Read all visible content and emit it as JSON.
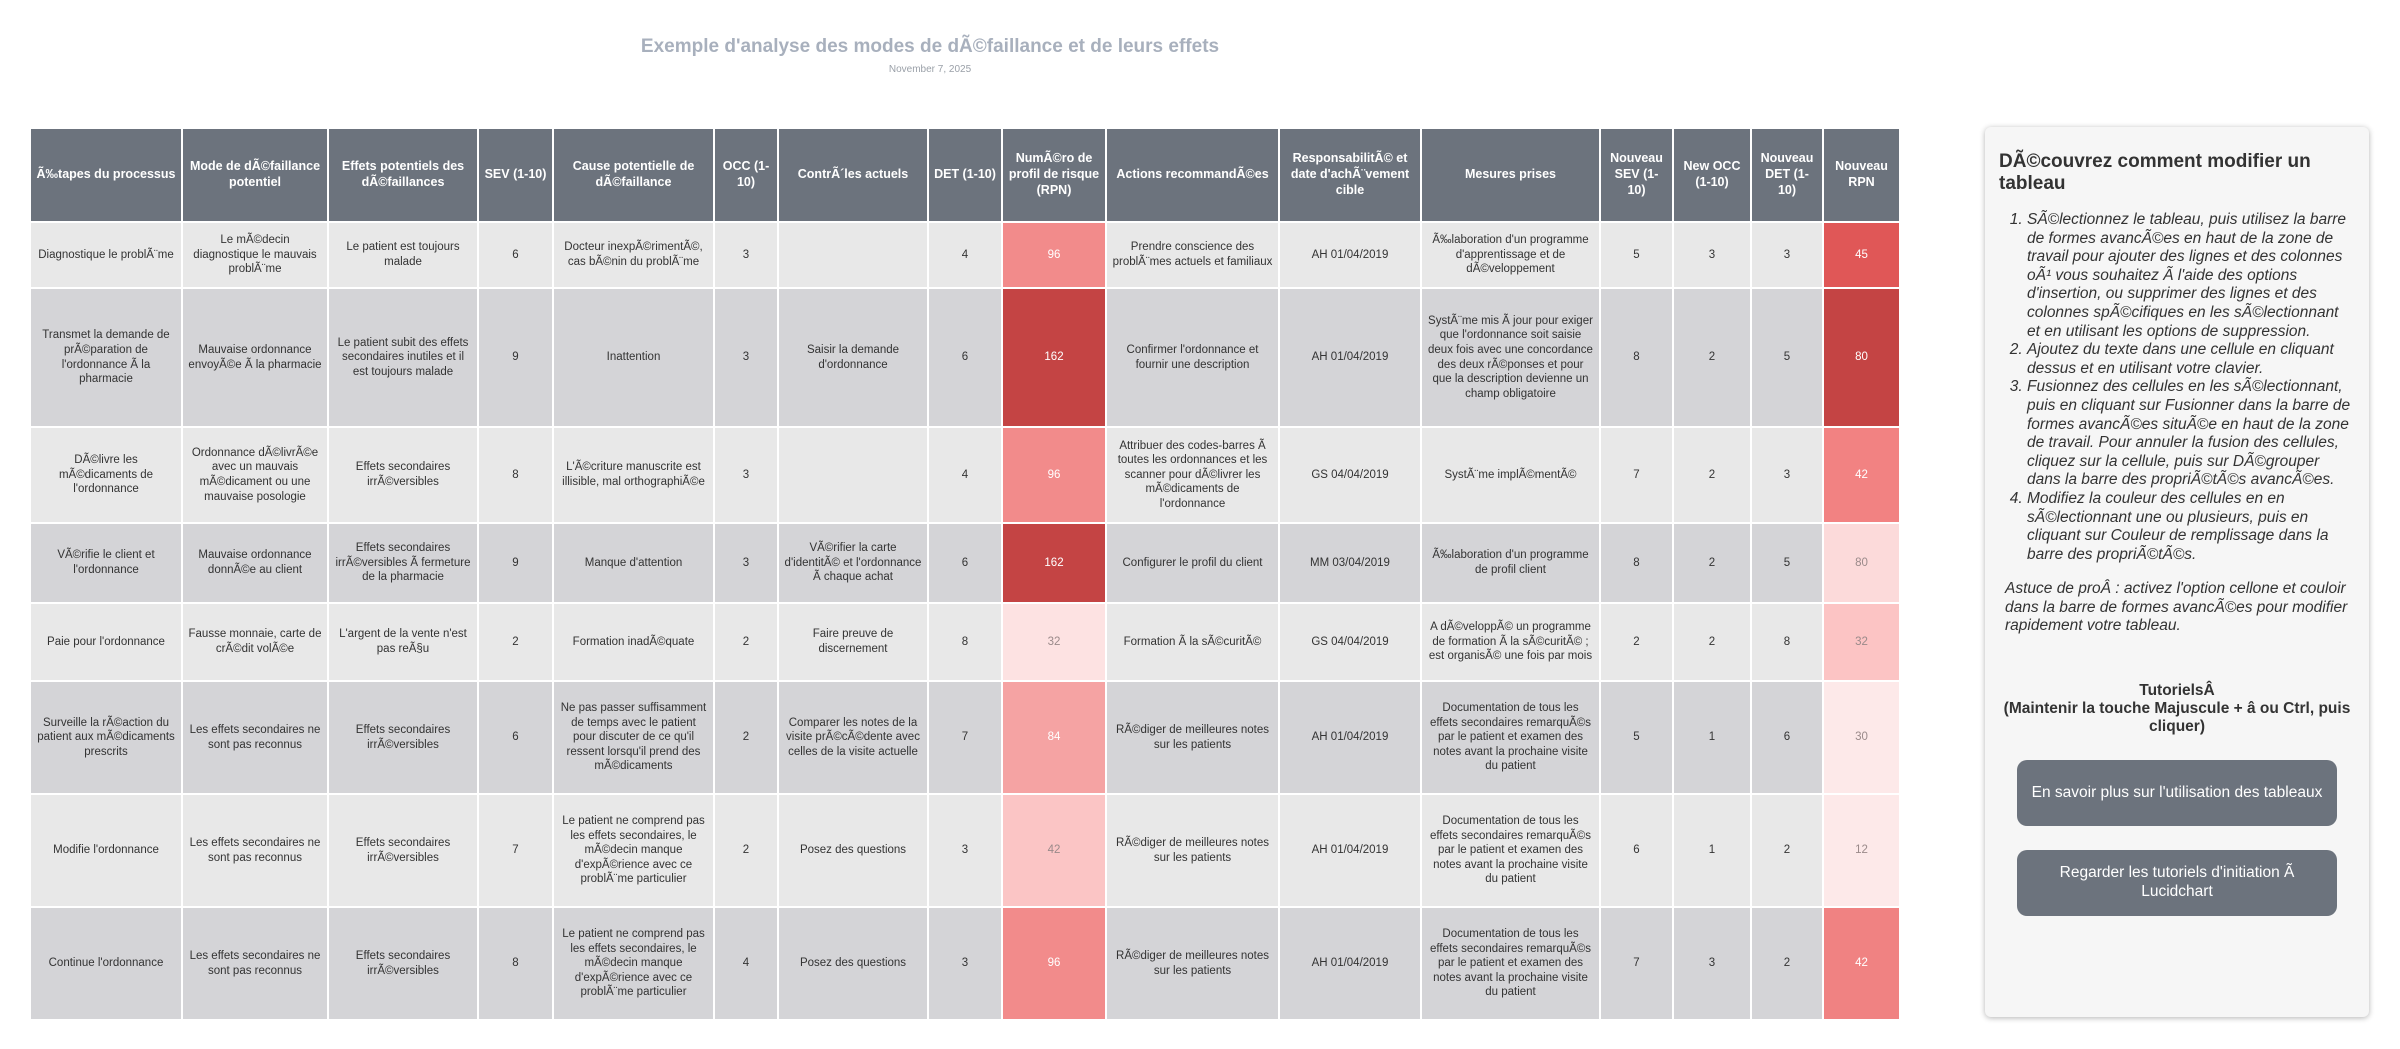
{
  "title": "Exemple d'analyse des modes de dÃ©faillance et de leurs effets",
  "date": "November 7, 2025",
  "table": {
    "headers": [
      "Ã‰tapes du processus",
      "Mode de dÃ©faillance potentiel",
      "Effets potentiels des dÃ©faillances",
      "SEV (1-10)",
      "Cause potentielle de dÃ©faillance",
      "OCC (1-10)",
      "ContrÃ´les actuels",
      "DET (1-10)",
      "NumÃ©ro de profil de risque (RPN)",
      "Actions recommandÃ©es",
      "ResponsabilitÃ© et date d'achÃ¨vement cible",
      "Mesures prises",
      "Nouveau SEV (1-10)",
      "New OCC (1-10)",
      "Nouveau DET (1-10)",
      "Nouveau RPN"
    ],
    "rows": [
      [
        "Diagnostique le problÃ¨me",
        "Le mÃ©decin diagnostique le mauvais problÃ¨me",
        "Le patient est toujours malade",
        6,
        "Docteur inexpÃ©rimentÃ©, cas bÃ©nin du problÃ¨me",
        3,
        null,
        4,
        96,
        "Prendre conscience des problÃ¨mes actuels et familiaux",
        "AH 01/04/2019",
        "Ã‰laboration d'un programme d'apprentissage et de dÃ©veloppement",
        5,
        3,
        3,
        45
      ],
      [
        "Transmet la demande de prÃ©paration de l'ordonnance Ã  la pharmacie",
        "Mauvaise ordonnance envoyÃ©e Ã  la pharmacie",
        "Le patient subit des effets secondaires inutiles et il est toujours malade",
        9,
        "Inattention",
        3,
        "Saisir la demande d'ordonnance",
        6,
        162,
        "Confirmer l'ordonnance et fournir une description",
        "AH 01/04/2019",
        "SystÃ¨me mis Ã  jour pour exiger que l'ordonnance soit saisie deux fois avec une concordance des deux rÃ©ponses et pour que la description devienne un champ obligatoire",
        8,
        2,
        5,
        80
      ],
      [
        "DÃ©livre les mÃ©dicaments de l'ordonnance",
        "Ordonnance dÃ©livrÃ©e avec un mauvais mÃ©dicament ou une mauvaise posologie",
        "Effets secondaires irrÃ©versibles",
        8,
        "L'Ã©criture manuscrite est illisible, mal orthographiÃ©e",
        3,
        null,
        4,
        96,
        "Attribuer des codes-barres Ã  toutes les ordonnances et les scanner pour dÃ©livrer les mÃ©dicaments de l'ordonnance",
        "GS 04/04/2019",
        "SystÃ¨me implÃ©mentÃ©",
        7,
        2,
        3,
        42
      ],
      [
        "VÃ©rifie le client et l'ordonnance",
        "Mauvaise ordonnance donnÃ©e au client",
        "Effets secondaires irrÃ©versibles Ã  fermeture de la pharmacie",
        9,
        "Manque d'attention",
        3,
        "VÃ©rifier la carte d'identitÃ© et l'ordonnance Ã  chaque achat",
        6,
        162,
        "Configurer le profil du client",
        "MM 03/04/2019",
        "Ã‰laboration d'un programme de profil client",
        8,
        2,
        5,
        80
      ],
      [
        "Paie pour l'ordonnance",
        "Fausse monnaie, carte de crÃ©dit volÃ©e",
        "L'argent de la vente n'est pas reÃ§u",
        2,
        "Formation inadÃ©quate",
        2,
        "Faire preuve de discernement",
        8,
        32,
        "Formation Ã  la sÃ©curitÃ©",
        "GS 04/04/2019",
        "A dÃ©veloppÃ© un programme de formation Ã  la sÃ©curitÃ© ; est organisÃ© une fois par mois",
        2,
        2,
        8,
        32
      ],
      [
        "Surveille la rÃ©action du patient aux mÃ©dicaments prescrits",
        "Les effets secondaires ne sont pas reconnus",
        "Effets secondaires irrÃ©versibles",
        6,
        "Ne pas passer suffisamment de temps avec le patient pour discuter de ce qu'il ressent lorsqu'il prend des mÃ©dicaments",
        2,
        "Comparer les notes de la visite prÃ©cÃ©dente avec celles de la visite actuelle",
        7,
        84,
        "RÃ©diger de meilleures notes sur les patients",
        "AH 01/04/2019",
        "Documentation de tous les effets secondaires remarquÃ©s par le patient et examen des notes avant la prochaine visite du patient",
        5,
        1,
        6,
        30
      ],
      [
        "Modifie l'ordonnance",
        "Les effets secondaires ne sont pas reconnus",
        "Effets secondaires irrÃ©versibles",
        7,
        "Le patient ne comprend pas les effets secondaires, le mÃ©decin manque d'expÃ©rience avec ce problÃ¨me particulier",
        2,
        "Posez des questions",
        3,
        42,
        "RÃ©diger de meilleures notes sur les patients",
        "AH 01/04/2019",
        "Documentation de tous les effets secondaires remarquÃ©s par le patient et examen des notes avant la prochaine visite du patient",
        6,
        1,
        2,
        12
      ],
      [
        "Continue l'ordonnance",
        "Les effets secondaires ne sont pas reconnus",
        "Effets secondaires irrÃ©versibles",
        8,
        "Le patient ne comprend pas les effets secondaires, le mÃ©decin manque d'expÃ©rience avec ce problÃ¨me particulier",
        4,
        "Posez des questions",
        3,
        96,
        "RÃ©diger de meilleures notes sur les patients",
        "AH 01/04/2019",
        "Documentation de tous les effets secondaires remarquÃ©s par le patient et examen des notes avant la prochaine visite du patient",
        7,
        3,
        2,
        42
      ]
    ],
    "rpn_colors": [
      "#f28b8b",
      "#c44444",
      "#f28b8b",
      "#c44444",
      "#fde2e2",
      "#f5a3a3",
      "#fbc5c5",
      "#f28b8b"
    ],
    "new_rpn_colors": [
      "#e05757",
      "#c44444",
      "#f28282",
      "#fcdada",
      "#fcc4c4",
      "#fde9e9",
      "#fde9e9",
      "#f08282"
    ]
  },
  "panel": {
    "title": "DÃ©couvrez comment modifier un tableau",
    "steps": [
      "SÃ©lectionnez le tableau, puis utilisez la barre de formes avancÃ©es en haut de la zone de travail pour ajouter des lignes et des colonnes oÃ¹ vous souhaitez Ã  l'aide des options d'insertion, ou supprimer des lignes et des colonnes spÃ©cifiques en les sÃ©lectionnant et en utilisant les options de suppression.",
      "Ajoutez du texte dans une cellule en cliquant dessus et en utilisant votre clavier.",
      "Fusionnez des cellules en les sÃ©lectionnant, puis en cliquant sur Fusionner dans la barre de formes avancÃ©es situÃ©e en haut de la zone de travail. Pour annuler la fusion des cellules, cliquez sur la cellule, puis sur DÃ©grouper dans la barre des propriÃ©tÃ©s avancÃ©es.",
      "Modifiez la couleur des cellules en en sÃ©lectionnant une ou plusieurs, puis en cliquant sur Couleur de remplissage dans la barre des propriÃ©tÃ©s."
    ],
    "tip": "Astuce de proÂ : activez l'option cellone et couloir dans la barre de formes avancÃ©es pour modifier rapidement votre tableau.",
    "tutorials_title": "TutorielsÂ ",
    "tutorials_hint": "(Maintenir la touche Majuscule + â  ou Ctrl, puis cliquer)",
    "buttons": [
      "En savoir plus sur l'utilisation des tableaux",
      "Regarder les tutoriels d'initiation Ã  Lucidchart"
    ]
  }
}
